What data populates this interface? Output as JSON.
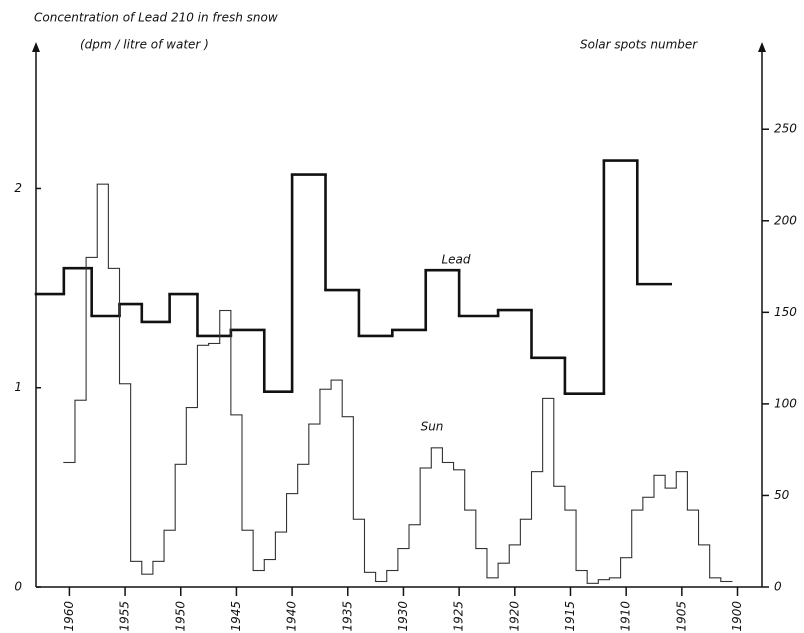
{
  "chart_data": {
    "type": "step",
    "title": "Concentration of Lead 210  in fresh snow",
    "subtitle": "(dpm / litre of water )",
    "y2_label": "Solar spots number",
    "xlim": [
      1963,
      1897.8
    ],
    "xticks": [
      1960,
      1955,
      1950,
      1945,
      1940,
      1935,
      1930,
      1925,
      1920,
      1915,
      1910,
      1905,
      1900
    ],
    "ylim": [
      0,
      2.72
    ],
    "yticks": [
      0,
      1,
      2
    ],
    "y2lim": [
      0,
      296
    ],
    "y2ticks": [
      0,
      50,
      100,
      150,
      200,
      250
    ],
    "series": [
      {
        "name": "Lead",
        "color": "#111111",
        "axis": "y",
        "bins": [
          1963,
          1960.5,
          1958,
          1955.5,
          1953.5,
          1951,
          1948.5,
          1945.5,
          1942.5,
          1940,
          1937,
          1934,
          1931,
          1928,
          1925,
          1921.5,
          1918.5,
          1915.5,
          1912,
          1909,
          1906
        ],
        "values": [
          1.47,
          1.6,
          1.36,
          1.42,
          1.33,
          1.47,
          1.26,
          1.29,
          0.98,
          2.07,
          1.49,
          1.26,
          1.29,
          1.59,
          1.36,
          1.39,
          1.15,
          0.97,
          2.14,
          1.52
        ]
      },
      {
        "name": "Sun",
        "color": "#333333",
        "axis": "y2",
        "bins": [
          1960.5,
          1959.5,
          1958.5,
          1957.5,
          1956.5,
          1955.5,
          1954.5,
          1953.5,
          1952.5,
          1951.5,
          1950.5,
          1949.5,
          1948.5,
          1947.5,
          1946.5,
          1945.5,
          1944.5,
          1943.5,
          1942.5,
          1941.5,
          1940.5,
          1939.5,
          1938.5,
          1937.5,
          1936.5,
          1935.5,
          1934.5,
          1933.5,
          1932.5,
          1931.5,
          1930.5,
          1929.5,
          1928.5,
          1927.5,
          1926.5,
          1925.5,
          1924.5,
          1923.5,
          1922.5,
          1921.5,
          1920.5,
          1919.5,
          1918.5,
          1917.5,
          1916.5,
          1915.5,
          1914.5,
          1913.5,
          1912.5,
          1911.5,
          1910.5,
          1909.5,
          1908.5,
          1907.5,
          1906.5,
          1905.5,
          1904.5,
          1903.5,
          1902.5,
          1901.5,
          1900.5
        ],
        "values": [
          68,
          102,
          180,
          220,
          174,
          111,
          14,
          7,
          14,
          31,
          67,
          98,
          132,
          133,
          151,
          94,
          31,
          9,
          15,
          30,
          51,
          67,
          89,
          108,
          113,
          93,
          37,
          8,
          3,
          9,
          21,
          34,
          65,
          76,
          68,
          64,
          42,
          21,
          5,
          13,
          23,
          37,
          63,
          103,
          55,
          42,
          9,
          2,
          4,
          5,
          16,
          42,
          49,
          61,
          54,
          63,
          42,
          23,
          5,
          3
        ]
      }
    ]
  }
}
